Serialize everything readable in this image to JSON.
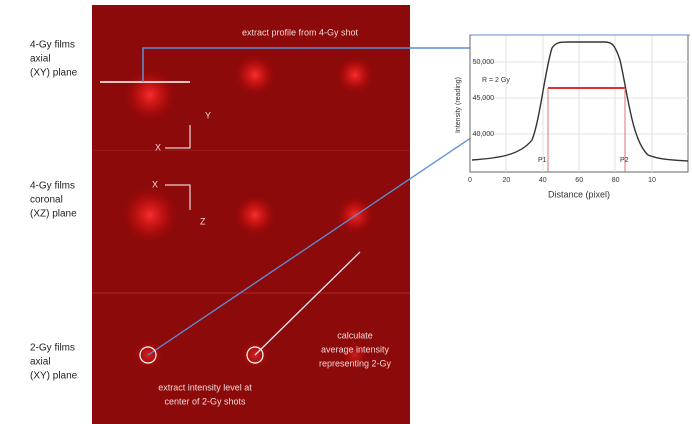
{
  "left_labels": [
    [
      "4-Gy films",
      "axial",
      "(XY) plane"
    ],
    [
      "4-Gy films",
      "coronal",
      "(XZ) plane"
    ],
    [
      "2-Gy films",
      "axial",
      "(XY) plane"
    ]
  ],
  "image": {
    "top_note": "extract profile from 4-Gy shot",
    "axes_axial": {
      "vertical": "Y",
      "horizontal": "X"
    },
    "axes_coronal": {
      "horizontal": "X",
      "vertical": "Z"
    },
    "right_note": [
      "calculate",
      "average intensity",
      "representing 2-Gy"
    ],
    "bottom_note": [
      "extract intensity level at",
      "center of 2-Gy shots"
    ]
  },
  "plot": {
    "y_label": "Intensity (reading)",
    "x_label": "Distance (pixel)",
    "xticks": [
      "0",
      "20",
      "40",
      "60",
      "80",
      "10"
    ],
    "yticks": [
      "50,000",
      "45,000",
      "40,000"
    ],
    "annotation": "R = 2 Gy",
    "marker_left": "P1",
    "marker_right": "P2"
  }
}
